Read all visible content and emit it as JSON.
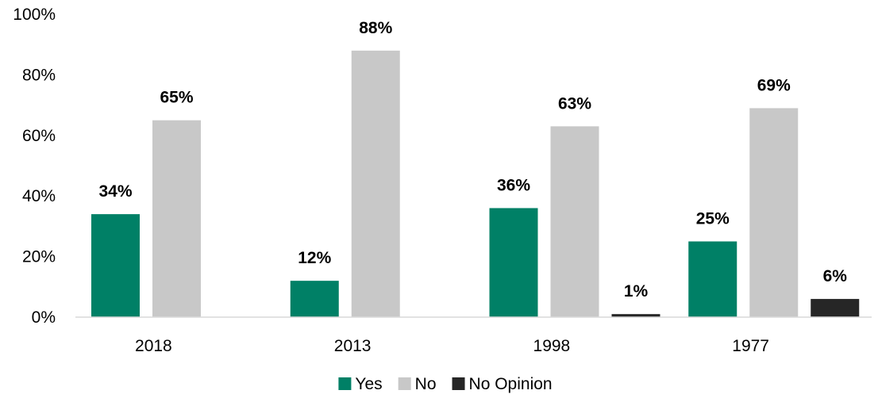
{
  "chart_data": {
    "type": "bar",
    "title": "",
    "xlabel": "",
    "ylabel": "",
    "categories": [
      "2018",
      "2013",
      "1998",
      "1977"
    ],
    "series": [
      {
        "name": "Yes",
        "color": "#008066",
        "values": [
          34,
          12,
          36,
          25
        ],
        "labels": [
          "34%",
          "12%",
          "36%",
          "25%"
        ]
      },
      {
        "name": "No",
        "color": "#c8c8c8",
        "values": [
          65,
          88,
          63,
          69
        ],
        "labels": [
          "65%",
          "88%",
          "63%",
          "69%"
        ]
      },
      {
        "name": "No Opinion",
        "color": "#262626",
        "values": [
          null,
          null,
          1,
          6
        ],
        "labels": [
          null,
          null,
          "1%",
          "6%"
        ]
      }
    ],
    "ylim": [
      0,
      100
    ],
    "yticks": [
      0,
      20,
      40,
      60,
      80,
      100
    ],
    "ytick_labels": [
      "0%",
      "20%",
      "40%",
      "60%",
      "80%",
      "100%"
    ],
    "grid": false,
    "legend_position": "bottom-center"
  }
}
